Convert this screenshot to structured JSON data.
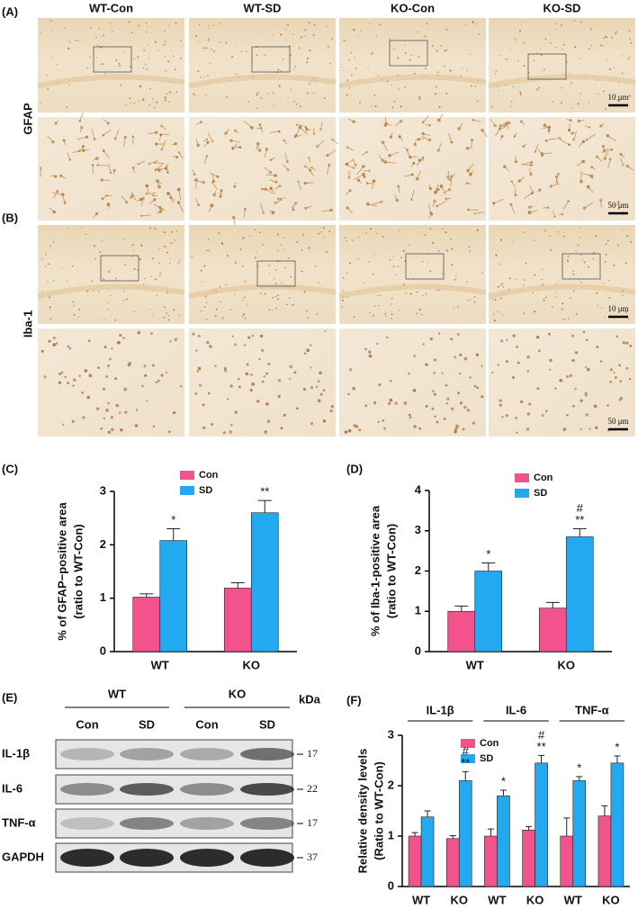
{
  "micrographs": [
    {
      "label": "(A)",
      "row_label": "GFAP",
      "columns": [
        "WT-Con",
        "WT-SD",
        "KO-Con",
        "KO-SD"
      ],
      "scale_bars": [
        "10 μm",
        "50 μm"
      ]
    },
    {
      "label": "(B)",
      "row_label": "Iba-1",
      "scale_bars": [
        "10 μm",
        "50 μm"
      ]
    }
  ],
  "blot": {
    "label": "(E)",
    "groups": [
      "WT",
      "KO"
    ],
    "lanes": [
      "Con",
      "SD",
      "Con",
      "SD"
    ],
    "unit": "kDa",
    "rows": [
      {
        "name": "IL-1β",
        "marker": 17
      },
      {
        "name": "IL-6",
        "marker": 22
      },
      {
        "name": "TNF-α",
        "marker": 17
      },
      {
        "name": "GAPDH",
        "marker": 37
      }
    ]
  },
  "chart_data": [
    {
      "type": "bar",
      "label": "(C)",
      "ylabel": [
        "% of GFAP−positive area",
        "(ratio to WT-Con)"
      ],
      "categories": [
        "WT",
        "KO"
      ],
      "series": [
        {
          "name": "Con",
          "color": "#f2538c",
          "values": [
            1.02,
            1.19
          ],
          "errors": [
            0.06,
            0.1
          ]
        },
        {
          "name": "SD",
          "color": "#22a9ef",
          "values": [
            2.08,
            2.6
          ],
          "errors": [
            0.22,
            0.23
          ],
          "annotations": [
            [
              "*"
            ],
            [
              "**"
            ]
          ]
        }
      ],
      "ylim": [
        0,
        3
      ],
      "yticks": [
        0,
        1,
        2,
        3
      ]
    },
    {
      "type": "bar",
      "label": "(D)",
      "ylabel": [
        "% of Iba-1-positive area",
        "(ratio to WT-Con)"
      ],
      "categories": [
        "WT",
        "KO"
      ],
      "series": [
        {
          "name": "Con",
          "color": "#f2538c",
          "values": [
            1.0,
            1.08
          ],
          "errors": [
            0.13,
            0.14
          ]
        },
        {
          "name": "SD",
          "color": "#22a9ef",
          "values": [
            2.0,
            2.85
          ],
          "errors": [
            0.2,
            0.2
          ],
          "annotations": [
            [
              "*"
            ],
            [
              "#",
              "**"
            ]
          ]
        }
      ],
      "ylim": [
        0,
        4
      ],
      "yticks": [
        0,
        1,
        2,
        3,
        4
      ]
    },
    {
      "type": "bar",
      "label": "(F)",
      "ylabel": [
        "Relative density levels",
        "(Ratio to WT-Con)"
      ],
      "groups": [
        "IL-1β",
        "IL-6",
        "TNF-α"
      ],
      "categories": [
        "WT",
        "KO",
        "WT",
        "KO",
        "WT",
        "KO"
      ],
      "series": [
        {
          "name": "Con",
          "color": "#f2538c",
          "values": [
            1.0,
            0.95,
            1.0,
            1.12,
            1.0,
            1.4
          ],
          "errors": [
            0.07,
            0.06,
            0.14,
            0.07,
            0.36,
            0.2
          ]
        },
        {
          "name": "SD",
          "color": "#22a9ef",
          "values": [
            1.38,
            2.1,
            1.8,
            2.45,
            2.1,
            2.45
          ],
          "errors": [
            0.12,
            0.18,
            0.11,
            0.15,
            0.08,
            0.14
          ],
          "annotations": [
            null,
            [
              "#",
              "**"
            ],
            [
              "*"
            ],
            [
              "#",
              "**"
            ],
            [
              "*"
            ],
            [
              "*"
            ]
          ]
        }
      ],
      "ylim": [
        0,
        3
      ],
      "yticks": [
        0,
        1,
        2,
        3
      ]
    }
  ]
}
